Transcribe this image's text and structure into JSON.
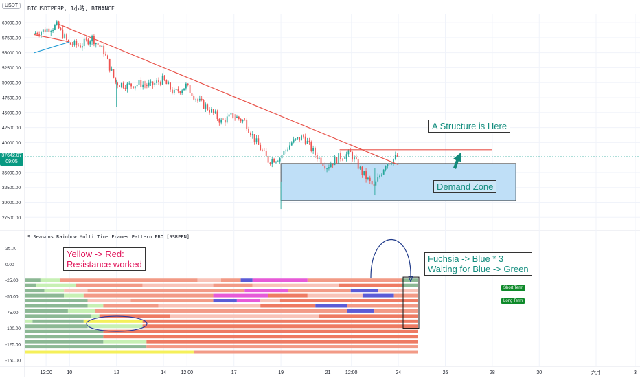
{
  "header": {
    "symbol_title": "BTCUSDTPERP, 1小時, BINANCE",
    "unit_label": "USDT"
  },
  "price_tag": {
    "price": "37642.07",
    "countdown": "09:05"
  },
  "indicator": {
    "title": "9 Seasons Rainbow Multi Time Frames Pattern PRO [9SRPEN]"
  },
  "annotations": {
    "structure": "A Structure is Here",
    "demand": "Demand Zone",
    "yellow_red_line1": "Yellow -> Red:",
    "yellow_red_line2": "Resistance worked",
    "fuchsia_line1": "Fuchsia -> Blue * 3",
    "fuchsia_line2": "Waiting for Blue -> Green",
    "short_term": "Short Term",
    "long_term": "Long Term"
  },
  "colors": {
    "up": "#26a69a",
    "down": "#ef5350",
    "trendline": "#e8534a",
    "support": "#2a9fd6",
    "demand_fill": "#bfdff7",
    "arrow": "#12897a",
    "gridline": "#f0f3fa",
    "axis_text": "#131722",
    "rainbow": {
      "yellow": "#f5f05a",
      "light_green": "#c7f0b4",
      "sage": "#8cb894",
      "salmon": "#f29a86",
      "red": "#ee7b63",
      "fuchsia": "#e65ad8",
      "blue": "#5b5bd6",
      "pink": "#f8c3b8"
    }
  },
  "chart_data": [
    {
      "type": "candlestick",
      "title": "BTCUSDTPERP, 1小時, BINANCE",
      "x_tick_labels": [
        "12:00",
        "10",
        "12",
        "14",
        "12:00",
        "17",
        "19",
        "21",
        "12:00",
        "24",
        "26",
        "28",
        "30",
        "六月",
        "3"
      ],
      "y_tick_labels": [
        "60000.00",
        "57500.00",
        "55000.00",
        "52500.00",
        "50000.00",
        "47500.00",
        "45000.00",
        "42500.00",
        "40000.00",
        "35000.00",
        "32500.00",
        "30000.00",
        "27500.00"
      ],
      "ylim": [
        26500,
        61500
      ],
      "close_series": [
        {
          "t": "May 09 00:00",
          "close": 58200
        },
        {
          "t": "May 09 12:00",
          "close": 58800
        },
        {
          "t": "May 10 00:00",
          "close": 59500
        },
        {
          "t": "May 10 12:00",
          "close": 56500
        },
        {
          "t": "May 11 00:00",
          "close": 56200
        },
        {
          "t": "May 11 12:00",
          "close": 57500
        },
        {
          "t": "May 12 00:00",
          "close": 55200
        },
        {
          "t": "May 12 12:00",
          "close": 50000
        },
        {
          "t": "May 13 00:00",
          "close": 49500
        },
        {
          "t": "May 13 12:00",
          "close": 49800
        },
        {
          "t": "May 14 00:00",
          "close": 49500
        },
        {
          "t": "May 14 12:00",
          "close": 50500
        },
        {
          "t": "May 15 00:00",
          "close": 48200
        },
        {
          "t": "May 15 12:00",
          "close": 49500
        },
        {
          "t": "May 16 00:00",
          "close": 47000
        },
        {
          "t": "May 16 12:00",
          "close": 45500
        },
        {
          "t": "May 17 00:00",
          "close": 43500
        },
        {
          "t": "May 17 12:00",
          "close": 44500
        },
        {
          "t": "May 18 00:00",
          "close": 43500
        },
        {
          "t": "May 18 12:00",
          "close": 40000
        },
        {
          "t": "May 19 00:00",
          "close": 37000
        },
        {
          "t": "May 19 12:00",
          "close": 37500
        },
        {
          "t": "May 20 00:00",
          "close": 40000
        },
        {
          "t": "May 20 12:00",
          "close": 41000
        },
        {
          "t": "May 21 00:00",
          "close": 38000
        },
        {
          "t": "May 21 12:00",
          "close": 36000
        },
        {
          "t": "May 22 00:00",
          "close": 37500
        },
        {
          "t": "May 22 12:00",
          "close": 38200
        },
        {
          "t": "May 23 00:00",
          "close": 35000
        },
        {
          "t": "May 23 12:00",
          "close": 32500
        },
        {
          "t": "May 24 00:00",
          "close": 36500
        },
        {
          "t": "May 24 12:00",
          "close": 37642.07
        }
      ],
      "lows": [
        {
          "t": "May 12 12:00",
          "low": 46000
        },
        {
          "t": "May 19 12:00",
          "low": 28900
        },
        {
          "t": "May 23 12:00",
          "low": 31200
        }
      ],
      "demand_zone": {
        "from": "May 19 12:00",
        "to": "May 29 12:00",
        "top": 36500,
        "bottom": 30300
      },
      "resistance_level": {
        "price": 38800,
        "from": "May 22 00:00",
        "to": "May 28 12:00"
      },
      "trendlines": [
        {
          "name": "down-trend",
          "from": {
            "t": "May 10 00:00",
            "price": 59800
          },
          "to": {
            "t": "May 24 12:00",
            "price": 36300
          }
        },
        {
          "name": "upper-wedge",
          "from": {
            "t": "May 09 00:00",
            "price": 58000
          },
          "to": {
            "t": "May 10 12:00",
            "price": 56800
          }
        },
        {
          "name": "support-line",
          "from": {
            "t": "May 09 00:00",
            "price": 55000
          },
          "to": {
            "t": "May 10 12:00",
            "price": 56800
          }
        }
      ]
    },
    {
      "type": "heatmap",
      "title": "9 Seasons Rainbow Multi Time Frames Pattern PRO [9SRPEN]",
      "y_tick_labels": [
        "25.00",
        "0.00",
        "-25.00",
        "-50.00",
        "-75.00",
        "-100.00",
        "-125.00",
        "-150.00"
      ],
      "ylim": [
        -152,
        37
      ],
      "rows": [
        {
          "level": -25,
          "segments": [
            [
              "sage",
              0,
              0.04
            ],
            [
              "light_green",
              0.04,
              0.09
            ],
            [
              "salmon",
              0.09,
              0.44
            ],
            [
              "pink",
              0.44,
              0.5
            ],
            [
              "salmon",
              0.5,
              0.55
            ],
            [
              "blue",
              0.55,
              0.58
            ],
            [
              "fuchsia",
              0.58,
              0.72
            ],
            [
              "salmon",
              0.72,
              0.96
            ],
            [
              "sage",
              0.96,
              1
            ]
          ]
        },
        {
          "level": -33,
          "segments": [
            [
              "sage",
              0,
              0.03
            ],
            [
              "light_green",
              0.03,
              0.13
            ],
            [
              "salmon",
              0.13,
              0.3
            ],
            [
              "pink",
              0.3,
              0.48
            ],
            [
              "salmon",
              0.48,
              0.58
            ],
            [
              "pink",
              0.58,
              0.8
            ],
            [
              "red",
              0.8,
              0.96
            ],
            [
              "sage",
              0.96,
              1
            ]
          ]
        },
        {
          "level": -41,
          "segments": [
            [
              "sage",
              0,
              0.05
            ],
            [
              "light_green",
              0.05,
              0.1
            ],
            [
              "pink",
              0.1,
              0.16
            ],
            [
              "salmon",
              0.16,
              0.56
            ],
            [
              "fuchsia",
              0.56,
              0.67
            ],
            [
              "salmon",
              0.67,
              0.83
            ],
            [
              "blue",
              0.83,
              0.9
            ],
            [
              "pink",
              0.9,
              1
            ]
          ]
        },
        {
          "level": -49,
          "segments": [
            [
              "sage",
              0,
              0.1
            ],
            [
              "light_green",
              0.1,
              0.15
            ],
            [
              "salmon",
              0.15,
              0.48
            ],
            [
              "fuchsia",
              0.48,
              0.62
            ],
            [
              "red",
              0.62,
              0.72
            ],
            [
              "pink",
              0.72,
              0.86
            ],
            [
              "blue",
              0.86,
              0.94
            ],
            [
              "salmon",
              0.94,
              1
            ]
          ]
        },
        {
          "level": -57,
          "segments": [
            [
              "sage",
              0,
              0.16
            ],
            [
              "pink",
              0.16,
              0.27
            ],
            [
              "salmon",
              0.27,
              0.48
            ],
            [
              "blue",
              0.48,
              0.54
            ],
            [
              "fuchsia",
              0.54,
              0.6
            ],
            [
              "pink",
              0.6,
              0.65
            ],
            [
              "red",
              0.65,
              1
            ]
          ]
        },
        {
          "level": -65,
          "segments": [
            [
              "sage",
              0,
              0.16
            ],
            [
              "light_green",
              0.16,
              0.2
            ],
            [
              "salmon",
              0.2,
              0.34
            ],
            [
              "pink",
              0.34,
              0.6
            ],
            [
              "red",
              0.6,
              0.74
            ],
            [
              "blue",
              0.74,
              0.82
            ],
            [
              "salmon",
              0.82,
              1
            ]
          ]
        },
        {
          "level": -73,
          "segments": [
            [
              "sage",
              0,
              0.11
            ],
            [
              "light_green",
              0.11,
              0.18
            ],
            [
              "salmon",
              0.18,
              0.82
            ],
            [
              "blue",
              0.82,
              0.89
            ],
            [
              "salmon",
              0.89,
              1
            ]
          ]
        },
        {
          "level": -81,
          "segments": [
            [
              "sage",
              0,
              0.17
            ],
            [
              "light_green",
              0.17,
              0.19
            ],
            [
              "red",
              0.19,
              0.37
            ],
            [
              "pink",
              0.37,
              0.75
            ],
            [
              "red",
              0.75,
              1
            ]
          ]
        },
        {
          "level": -89,
          "segments": [
            [
              "light_green",
              0,
              0.02
            ],
            [
              "sage",
              0.02,
              0.15
            ],
            [
              "yellow",
              0.15,
              0.3
            ],
            [
              "red",
              0.3,
              1
            ]
          ]
        },
        {
          "level": -97,
          "segments": [
            [
              "sage",
              0,
              0.16
            ],
            [
              "light_green",
              0.16,
              0.3
            ],
            [
              "red",
              0.3,
              1
            ]
          ]
        },
        {
          "level": -105,
          "segments": [
            [
              "sage",
              0,
              0.2
            ],
            [
              "red",
              0.2,
              1
            ]
          ]
        },
        {
          "level": -113,
          "segments": [
            [
              "sage",
              0,
              0.2
            ],
            [
              "red",
              0.2,
              1
            ]
          ]
        },
        {
          "level": -121,
          "segments": [
            [
              "sage",
              0,
              0.2
            ],
            [
              "light_green",
              0.2,
              0.31
            ],
            [
              "red",
              0.31,
              1
            ]
          ]
        },
        {
          "level": -129,
          "segments": [
            [
              "sage",
              0,
              0.31
            ],
            [
              "salmon",
              0.31,
              1
            ]
          ]
        },
        {
          "level": -137,
          "segments": [
            [
              "yellow",
              0,
              0.43
            ],
            [
              "salmon",
              0.43,
              1
            ]
          ]
        }
      ]
    }
  ]
}
